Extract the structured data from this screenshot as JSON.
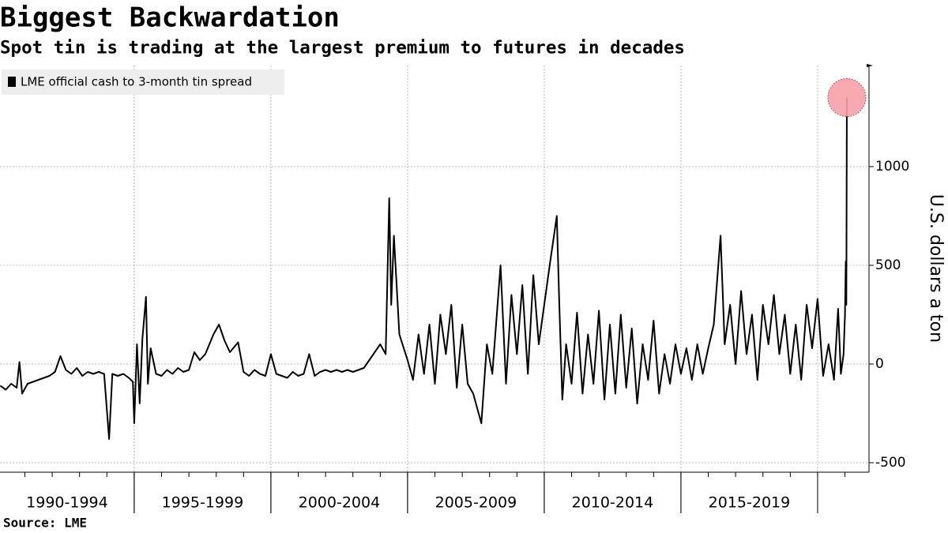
{
  "chart_data": {
    "type": "line",
    "title": "Biggest Backwardation",
    "subtitle": "Spot tin is trading at the largest premium to futures in decades",
    "y_label": "U.S. dollars a ton",
    "source": "Source: LME",
    "legend": "top-left",
    "grid": true,
    "xlim": [
      1990.09,
      2021.88
    ],
    "ylim": [
      -548,
      1512
    ],
    "yticks": [
      -500,
      0,
      500,
      1000
    ],
    "x_groups": [
      {
        "label": "1990-1994",
        "start": 1990,
        "end": 1995
      },
      {
        "label": "1995-1999",
        "start": 1995,
        "end": 2000
      },
      {
        "label": "2000-2004",
        "start": 2000,
        "end": 2005
      },
      {
        "label": "2005-2009",
        "start": 2005,
        "end": 2010
      },
      {
        "label": "2010-2014",
        "start": 2010,
        "end": 2015
      },
      {
        "label": "2015-2019",
        "start": 2015,
        "end": 2020
      }
    ],
    "x": [
      1990.1,
      1990.3,
      1990.5,
      1990.7,
      1990.8,
      1990.9,
      1991.1,
      1991.3,
      1991.5,
      1991.7,
      1991.9,
      1992.1,
      1992.3,
      1992.5,
      1992.7,
      1992.9,
      1993.1,
      1993.3,
      1993.5,
      1993.7,
      1993.9,
      1994.08,
      1994.2,
      1994.4,
      1994.6,
      1994.8,
      1994.95,
      1995.0,
      1995.1,
      1995.2,
      1995.3,
      1995.43,
      1995.5,
      1995.6,
      1995.8,
      1996.0,
      1996.2,
      1996.4,
      1996.6,
      1996.8,
      1997.0,
      1997.2,
      1997.4,
      1997.6,
      1997.9,
      1998.1,
      1998.3,
      1998.5,
      1998.8,
      1999.0,
      1999.2,
      1999.4,
      1999.6,
      1999.8,
      2000.0,
      2000.2,
      2000.4,
      2000.6,
      2000.8,
      2001.0,
      2001.2,
      2001.4,
      2001.6,
      2001.8,
      2002.0,
      2002.2,
      2002.4,
      2002.6,
      2002.8,
      2003.0,
      2003.2,
      2003.4,
      2003.6,
      2003.8,
      2004.0,
      2004.2,
      2004.33,
      2004.4,
      2004.5,
      2004.7,
      2005.0,
      2005.2,
      2005.4,
      2005.6,
      2005.8,
      2006.0,
      2006.2,
      2006.4,
      2006.6,
      2006.8,
      2007.0,
      2007.2,
      2007.4,
      2007.7,
      2007.9,
      2008.1,
      2008.4,
      2008.6,
      2008.8,
      2009.0,
      2009.2,
      2009.4,
      2009.6,
      2009.8,
      2010.0,
      2010.2,
      2010.46,
      2010.55,
      2010.66,
      2010.8,
      2011.0,
      2011.2,
      2011.4,
      2011.6,
      2011.8,
      2012.0,
      2012.2,
      2012.4,
      2012.6,
      2012.8,
      2013.0,
      2013.2,
      2013.4,
      2013.6,
      2013.8,
      2014.0,
      2014.2,
      2014.4,
      2014.6,
      2014.8,
      2015.0,
      2015.2,
      2015.4,
      2015.6,
      2015.8,
      2016.0,
      2016.2,
      2016.45,
      2016.6,
      2016.8,
      2017.0,
      2017.2,
      2017.4,
      2017.6,
      2017.8,
      2018.0,
      2018.2,
      2018.4,
      2018.6,
      2018.8,
      2019.0,
      2019.2,
      2019.4,
      2019.6,
      2019.8,
      2020.0,
      2020.2,
      2020.4,
      2020.6,
      2020.75,
      2020.85,
      2020.95,
      2021.0,
      2021.03,
      2021.05,
      2021.07
    ],
    "series": [
      {
        "name": "LME official cash to 3-month tin spread",
        "color": "#000000",
        "values": [
          -110,
          -130,
          -100,
          -120,
          10,
          -150,
          -100,
          -90,
          -80,
          -70,
          -60,
          -40,
          40,
          -30,
          -50,
          -20,
          -60,
          -40,
          -50,
          -40,
          -50,
          -380,
          -50,
          -60,
          -50,
          -70,
          -90,
          -300,
          100,
          -200,
          130,
          340,
          -100,
          80,
          -50,
          -60,
          -30,
          -50,
          -20,
          -40,
          -30,
          60,
          20,
          50,
          150,
          200,
          120,
          60,
          110,
          -40,
          -60,
          -30,
          -50,
          -60,
          50,
          -50,
          -60,
          -70,
          -40,
          -60,
          -50,
          50,
          -60,
          -40,
          -30,
          -40,
          -30,
          -40,
          -30,
          -40,
          -30,
          -20,
          20,
          60,
          100,
          50,
          840,
          300,
          650,
          150,
          20,
          -80,
          150,
          -50,
          200,
          -100,
          250,
          50,
          300,
          -120,
          200,
          -100,
          -150,
          -300,
          100,
          -50,
          500,
          -100,
          350,
          50,
          400,
          -50,
          450,
          100,
          300,
          500,
          750,
          300,
          -180,
          100,
          -100,
          260,
          -150,
          150,
          -100,
          270,
          -180,
          200,
          -150,
          250,
          -120,
          180,
          -200,
          100,
          -80,
          220,
          -150,
          50,
          -100,
          100,
          -50,
          80,
          -80,
          100,
          -50,
          80,
          200,
          650,
          100,
          300,
          0,
          370,
          50,
          250,
          -80,
          300,
          100,
          350,
          50,
          250,
          -50,
          200,
          -80,
          300,
          80,
          330,
          -60,
          100,
          -80,
          280,
          -50,
          50,
          250,
          520,
          300,
          1350
        ]
      }
    ]
  }
}
